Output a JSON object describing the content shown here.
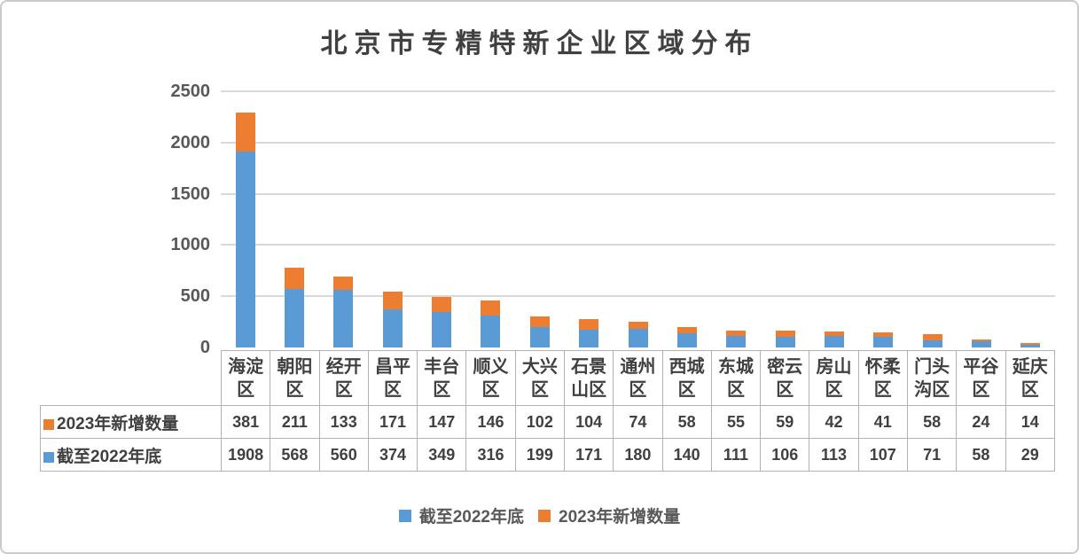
{
  "chart_data": {
    "type": "bar",
    "stacked": true,
    "title": "北京市专精特新企业区域分布",
    "categories": [
      "海淀区",
      "朝阳区",
      "经开区",
      "昌平区",
      "丰台区",
      "顺义区",
      "大兴区",
      "石景山区",
      "通州区",
      "西城区",
      "东城区",
      "密云区",
      "房山区",
      "怀柔区",
      "门头沟区",
      "平谷区",
      "延庆区"
    ],
    "series": [
      {
        "name": "截至2022年底",
        "color": "#5B9BD5",
        "values": [
          1908,
          568,
          560,
          374,
          349,
          316,
          199,
          171,
          180,
          140,
          111,
          106,
          113,
          107,
          71,
          58,
          29
        ]
      },
      {
        "name": "2023年新增数量",
        "color": "#ED7D31",
        "values": [
          381,
          211,
          133,
          171,
          147,
          146,
          102,
          104,
          74,
          58,
          55,
          59,
          42,
          41,
          58,
          24,
          14
        ]
      }
    ],
    "y_ticks": [
      0,
      500,
      1000,
      1500,
      2000,
      2500
    ],
    "ylim": [
      0,
      2500
    ],
    "grid": true,
    "legend_position": "bottom",
    "data_table_shown": true,
    "colors": {
      "grid": "#d9d9d9",
      "axis_text": "#595959",
      "title_text": "#404040",
      "table_border": "#b2b2b2"
    }
  }
}
